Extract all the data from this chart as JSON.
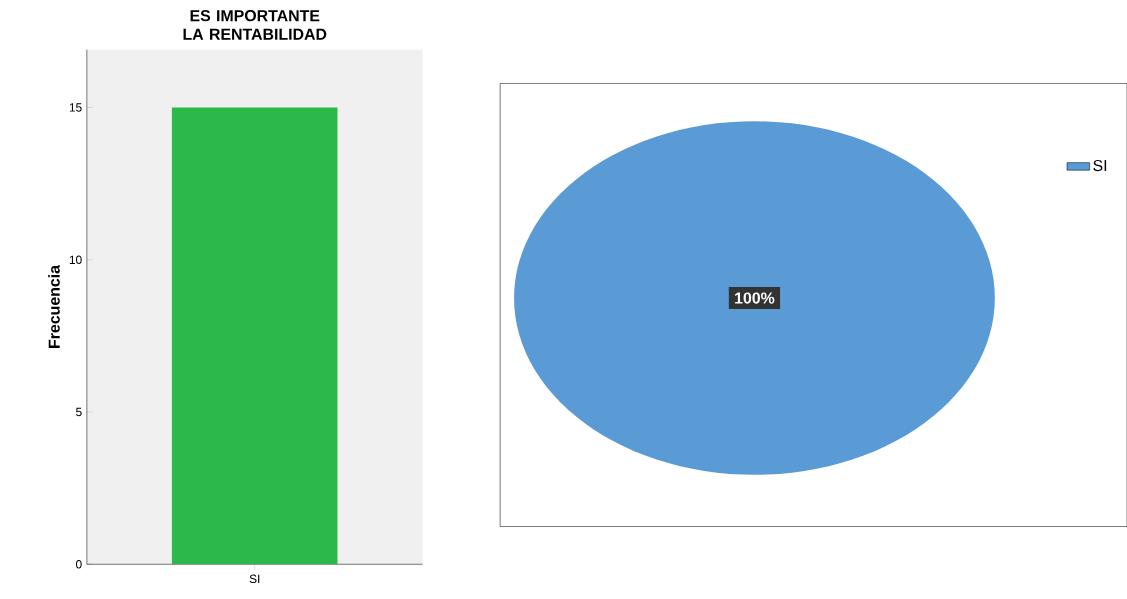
{
  "chart_data": [
    {
      "type": "bar",
      "title": "ES IMPORTANTE LA RENTABILIDAD",
      "ylabel": "Frecuencia",
      "categories": [
        "SI"
      ],
      "values": [
        15
      ],
      "color": "#2db84a",
      "ylim": [
        0,
        16.9
      ],
      "yticks": [
        0,
        5,
        10,
        15
      ],
      "grid": false
    },
    {
      "type": "pie",
      "categories": [
        "SI"
      ],
      "values": [
        100
      ],
      "colors": [
        "#5b9bd5"
      ],
      "value_labels": [
        "100%"
      ],
      "legend": "right"
    }
  ]
}
